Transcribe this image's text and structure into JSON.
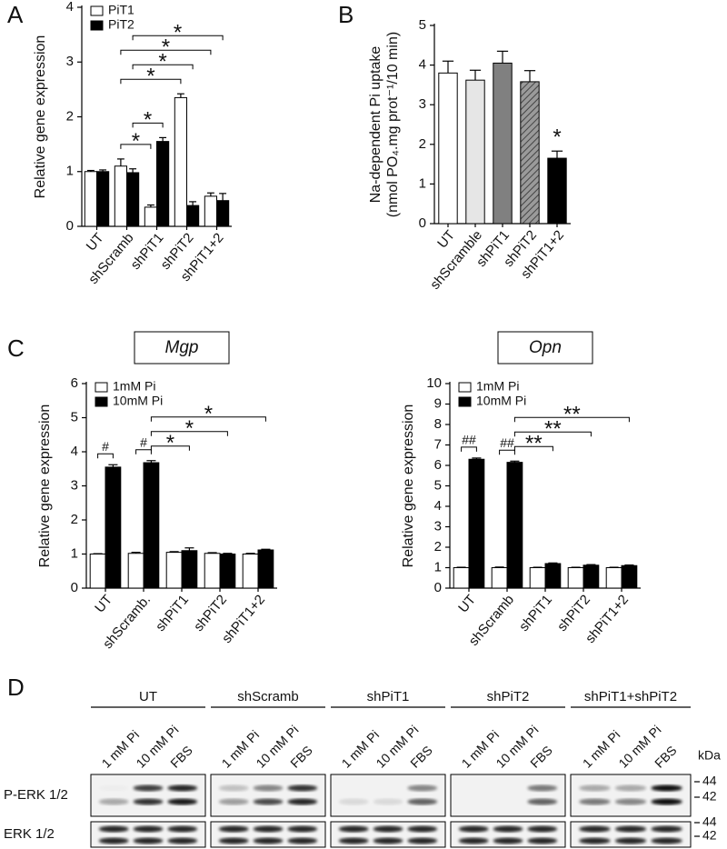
{
  "chart_data": [
    {
      "type": "bar",
      "panel": "A",
      "ylabel": [
        "Relative gene expression"
      ],
      "categories": [
        "UT",
        "shScramb",
        "shPiT1",
        "shPiT2",
        "shPiT1+2"
      ],
      "series": [
        {
          "name": "PiT1",
          "color": "#ffffff",
          "values": [
            1.0,
            1.1,
            0.35,
            2.35,
            0.55
          ],
          "errors": [
            0.02,
            0.13,
            0.04,
            0.07,
            0.06
          ]
        },
        {
          "name": "PiT2",
          "color": "#000000",
          "values": [
            1.0,
            0.98,
            1.55,
            0.38,
            0.47
          ],
          "errors": [
            0.03,
            0.07,
            0.07,
            0.07,
            0.13
          ]
        }
      ],
      "ylim": [
        0,
        4
      ],
      "yticks": [
        0,
        1,
        2,
        3,
        4
      ],
      "legend": "top-left",
      "annotations": [
        {
          "text": "*",
          "from": [
            "shScramb",
            "PiT1"
          ],
          "to": [
            "shPiT1",
            "PiT1"
          ]
        },
        {
          "text": "*",
          "from": [
            "shScramb",
            "PiT2"
          ],
          "to": [
            "shPiT1",
            "PiT2"
          ]
        },
        {
          "text": "*",
          "from": [
            "shScramb",
            "PiT1"
          ],
          "to": [
            "shPiT2",
            "PiT1"
          ]
        },
        {
          "text": "*",
          "from": [
            "shScramb",
            "PiT2"
          ],
          "to": [
            "shPiT2",
            "PiT2"
          ]
        },
        {
          "text": "*",
          "from": [
            "shScramb",
            "PiT1"
          ],
          "to": [
            "shPiT1+2",
            "PiT1"
          ]
        },
        {
          "text": "*",
          "from": [
            "shScramb",
            "PiT2"
          ],
          "to": [
            "shPiT1+2",
            "PiT2"
          ]
        }
      ]
    },
    {
      "type": "bar",
      "panel": "B",
      "ylabel": [
        "Na-dependent Pi uptake",
        "(nmol PO₄.mg prot⁻¹/10 min)"
      ],
      "categories": [
        "UT",
        "shScramble",
        "shPiT1",
        "shPiT2",
        "shPiT1+2"
      ],
      "series": [
        {
          "colors": [
            "#ffffff",
            "#e6e6e6",
            "#808080",
            "#9a9a9a",
            "#000000"
          ],
          "hatched": [
            false,
            false,
            false,
            true,
            false
          ],
          "values": [
            3.8,
            3.62,
            4.05,
            3.58,
            1.65
          ],
          "errors": [
            0.3,
            0.25,
            0.3,
            0.28,
            0.18
          ]
        }
      ],
      "ylim": [
        0,
        5
      ],
      "yticks": [
        0,
        1,
        2,
        3,
        4,
        5
      ],
      "annotations": [
        {
          "text": "*",
          "over": [
            "shPiT1+2"
          ]
        }
      ]
    },
    {
      "type": "bar",
      "panel": "C",
      "title": "Mgp",
      "ylabel": [
        "Relative gene expression"
      ],
      "categories": [
        "UT",
        "shScramb.",
        "shPiT1",
        "shPiT2",
        "shPiT1+2"
      ],
      "series": [
        {
          "name": "1mM Pi",
          "color": "#ffffff",
          "values": [
            1.0,
            1.02,
            1.05,
            1.02,
            1.0
          ],
          "errors": [
            0.01,
            0.03,
            0.02,
            0.02,
            0.02
          ]
        },
        {
          "name": "10mM Pi",
          "color": "#000000",
          "values": [
            3.55,
            3.68,
            1.1,
            1.0,
            1.12
          ],
          "errors": [
            0.07,
            0.06,
            0.08,
            0.02,
            0.02
          ]
        }
      ],
      "ylim": [
        0,
        6
      ],
      "yticks": [
        0,
        1,
        2,
        3,
        4,
        5,
        6
      ],
      "legend": "top-left",
      "annotations": [
        {
          "text": "#",
          "from": [
            "UT",
            "1mM Pi"
          ],
          "to": [
            "UT",
            "10mM Pi"
          ]
        },
        {
          "text": "#",
          "from": [
            "shScramb.",
            "1mM Pi"
          ],
          "to": [
            "shScramb.",
            "10mM Pi"
          ]
        },
        {
          "text": "*",
          "from": [
            "shScramb.",
            "10mM Pi"
          ],
          "to": [
            "shPiT1",
            "10mM Pi"
          ]
        },
        {
          "text": "*",
          "from": [
            "shScramb.",
            "10mM Pi"
          ],
          "to": [
            "shPiT2",
            "10mM Pi"
          ]
        },
        {
          "text": "*",
          "from": [
            "shScramb.",
            "10mM Pi"
          ],
          "to": [
            "shPiT1+2",
            "10mM Pi"
          ]
        }
      ]
    },
    {
      "type": "bar",
      "title": "Opn",
      "ylabel": [
        "Relative gene expression"
      ],
      "categories": [
        "UT",
        "shScramb",
        "shPiT1",
        "shPiT2",
        "shPiT1+2"
      ],
      "series": [
        {
          "name": "1mM Pi",
          "color": "#ffffff",
          "values": [
            1.0,
            1.0,
            1.0,
            1.0,
            1.0
          ],
          "errors": [
            0.02,
            0.03,
            0.02,
            0.02,
            0.02
          ]
        },
        {
          "name": "10mM Pi",
          "color": "#000000",
          "values": [
            6.3,
            6.15,
            1.2,
            1.12,
            1.1
          ],
          "errors": [
            0.06,
            0.06,
            0.03,
            0.03,
            0.03
          ]
        }
      ],
      "ylim": [
        0,
        10
      ],
      "yticks": [
        0,
        1,
        2,
        3,
        4,
        5,
        6,
        7,
        8,
        9,
        10
      ],
      "legend": "top-left",
      "annotations": [
        {
          "text": "##",
          "from": [
            "UT",
            "1mM Pi"
          ],
          "to": [
            "UT",
            "10mM Pi"
          ]
        },
        {
          "text": "##",
          "from": [
            "shScramb",
            "1mM Pi"
          ],
          "to": [
            "shScramb",
            "10mM Pi"
          ]
        },
        {
          "text": "**",
          "from": [
            "shScramb",
            "10mM Pi"
          ],
          "to": [
            "shPiT1",
            "10mM Pi"
          ]
        },
        {
          "text": "**",
          "from": [
            "shScramb",
            "10mM Pi"
          ],
          "to": [
            "shPiT2",
            "10mM Pi"
          ]
        },
        {
          "text": "**",
          "from": [
            "shScramb",
            "10mM Pi"
          ],
          "to": [
            "shPiT1+2",
            "10mM Pi"
          ]
        }
      ]
    }
  ],
  "blot": {
    "panel": "D",
    "groups": [
      "UT",
      "shScramb",
      "shPiT1",
      "shPiT2",
      "shPiT1+shPiT2"
    ],
    "lanes": [
      "1 mM Pi",
      "10 mM Pi",
      "FBS"
    ],
    "unit": "kDa",
    "rows": [
      {
        "label": "P-ERK 1/2",
        "markers": [
          "44",
          "42"
        ]
      },
      {
        "label": "ERK 1/2",
        "markers": [
          "44",
          "42"
        ]
      }
    ]
  }
}
